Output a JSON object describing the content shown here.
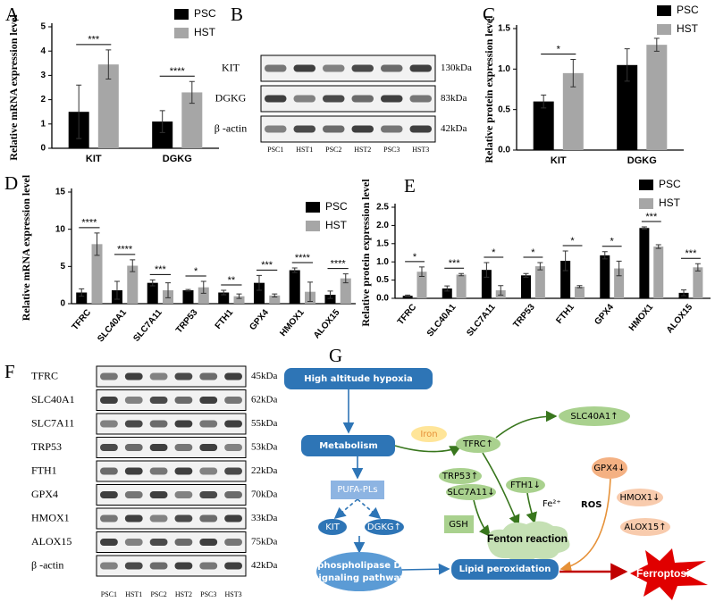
{
  "chart_data": [
    {
      "type": "bar",
      "panel": "A",
      "y_label": "Relative mRNA expression level",
      "categories": [
        "KIT",
        "DGKG"
      ],
      "series": [
        {
          "name": "PSC",
          "color": "#000000",
          "values": [
            1.5,
            1.1
          ],
          "errors": [
            1.1,
            0.45
          ]
        },
        {
          "name": "HST",
          "color": "#a6a6a6",
          "values": [
            3.45,
            2.3
          ],
          "errors": [
            0.6,
            0.45
          ]
        }
      ],
      "significance": [
        "***",
        "****"
      ],
      "ylim": [
        0,
        5
      ],
      "yticks": [
        0,
        1,
        2,
        3,
        4,
        5
      ],
      "legend": "upper right"
    },
    {
      "type": "bar",
      "panel": "C",
      "y_label": "Relative protein expression level",
      "categories": [
        "KIT",
        "DGKG"
      ],
      "series": [
        {
          "name": "PSC",
          "color": "#000000",
          "values": [
            0.6,
            1.05
          ],
          "errors": [
            0.08,
            0.2
          ]
        },
        {
          "name": "HST",
          "color": "#a6a6a6",
          "values": [
            0.95,
            1.3
          ],
          "errors": [
            0.17,
            0.08
          ]
        }
      ],
      "significance": [
        "*",
        null
      ],
      "ylim": [
        0,
        1.5
      ],
      "yticks": [
        {
          "value": 0,
          "label": "0.0"
        },
        0.5,
        {
          "value": 1,
          "label": "1.0"
        },
        1.5
      ],
      "legend": "upper right"
    },
    {
      "type": "bar",
      "panel": "D",
      "y_label": "Relative mRNA expression level",
      "categories": [
        "TFRC",
        "SLC40A1",
        "SLC7A11",
        "TRP53",
        "FTH1",
        "GPX4",
        "HMOX1",
        "ALOX15"
      ],
      "series": [
        {
          "name": "PSC",
          "color": "#000000",
          "values": [
            1.5,
            1.8,
            2.8,
            1.8,
            1.5,
            2.8,
            4.5,
            1.2
          ],
          "errors": [
            0.5,
            1.2,
            0.4,
            0.1,
            0.3,
            1.0,
            0.3,
            0.5
          ]
        },
        {
          "name": "HST",
          "color": "#a6a6a6",
          "values": [
            8,
            5.1,
            1.8,
            2.2,
            1.0,
            1.1,
            1.6,
            3.4
          ],
          "errors": [
            1.5,
            0.8,
            1.0,
            0.8,
            0.3,
            0.2,
            1.3,
            0.6
          ]
        }
      ],
      "significance": [
        "****",
        "****",
        "***",
        "*",
        "**",
        "***",
        "****",
        "****"
      ],
      "ylim": [
        0,
        15
      ],
      "yticks": [
        0,
        5,
        10,
        15
      ],
      "legend": "upper right"
    },
    {
      "type": "bar",
      "panel": "E",
      "y_label": "Relative protein expression level",
      "categories": [
        "TFRC",
        "SLC40A1",
        "SLC7A11",
        "TRP53",
        "FTH1",
        "GPX4",
        "HMOX1",
        "ALOX15"
      ],
      "series": [
        {
          "name": "PSC",
          "color": "#000000",
          "values": [
            0.07,
            0.27,
            0.78,
            0.63,
            1.03,
            1.18,
            1.93,
            0.15
          ],
          "errors": [
            0.02,
            0.07,
            0.2,
            0.05,
            0.27,
            0.1,
            0.03,
            0.08
          ]
        },
        {
          "name": "HST",
          "color": "#a6a6a6",
          "values": [
            0.73,
            0.65,
            0.22,
            0.88,
            0.32,
            0.82,
            1.42,
            0.85
          ],
          "errors": [
            0.13,
            0.03,
            0.13,
            0.1,
            0.03,
            0.2,
            0.05,
            0.1
          ]
        }
      ],
      "significance": [
        "*",
        "***",
        "*",
        "*",
        "*",
        "*",
        "***",
        "***"
      ],
      "ylim": [
        0,
        2.5
      ],
      "yticks": [
        {
          "value": 0,
          "label": "0.0"
        },
        0.5,
        {
          "value": 1,
          "label": "1.0"
        },
        1.5,
        {
          "value": 2,
          "label": "2.0"
        },
        2.5
      ],
      "legend": "upper right"
    }
  ],
  "blots": [
    {
      "panel": "B",
      "lanes": [
        "PSC1",
        "HST1",
        "PSC2",
        "HST2",
        "PSC3",
        "HST3"
      ],
      "rows": [
        {
          "label": "KIT",
          "size": "130kDa"
        },
        {
          "label": "DGKG",
          "size": "83kDa"
        },
        {
          "label": "β -actin",
          "size": "42kDa"
        }
      ]
    },
    {
      "panel": "F",
      "lanes": [
        "PSC1",
        "HST1",
        "PSC2",
        "HST2",
        "PSC3",
        "HST3"
      ],
      "rows": [
        {
          "label": "TFRC",
          "size": "45kDa"
        },
        {
          "label": "SLC40A1",
          "size": "62kDa"
        },
        {
          "label": "SLC7A11",
          "size": "55kDa"
        },
        {
          "label": "TRP53",
          "size": "53kDa"
        },
        {
          "label": "FTH1",
          "size": "22kDa"
        },
        {
          "label": "GPX4",
          "size": "70kDa"
        },
        {
          "label": "HMOX1",
          "size": "33kDa"
        },
        {
          "label": "ALOX15",
          "size": "75kDa"
        },
        {
          "label": "β -actin",
          "size": "42kDa"
        }
      ]
    }
  ],
  "diagram": {
    "panel": "G",
    "nodes": {
      "hypoxia": "High altitude hypoxia",
      "metabolism": "Metabolism",
      "iron": "Iron",
      "tfrc": "TFRC↑",
      "slc40a1": "SLC40A1↑",
      "pufa": "PUFA-PLs",
      "kit": "KIT",
      "dgkg": "DGKG↑",
      "pld_1": "phospholipase D",
      "pld_2": "signaling pathway",
      "trp53": "TRP53↑",
      "slc7a11": "SLC7A11↓",
      "fth1": "FTH1↓",
      "fe": "Fe²⁺",
      "gsh": "GSH",
      "fenton": "Fenton reaction",
      "lipid": "Lipid peroxidation",
      "gpx4": "GPX4↓",
      "hmox1": "HMOX1↓",
      "alox15": "ALOX15↑",
      "ros": "ROS",
      "ferroptosis": "Ferroptosis"
    }
  }
}
